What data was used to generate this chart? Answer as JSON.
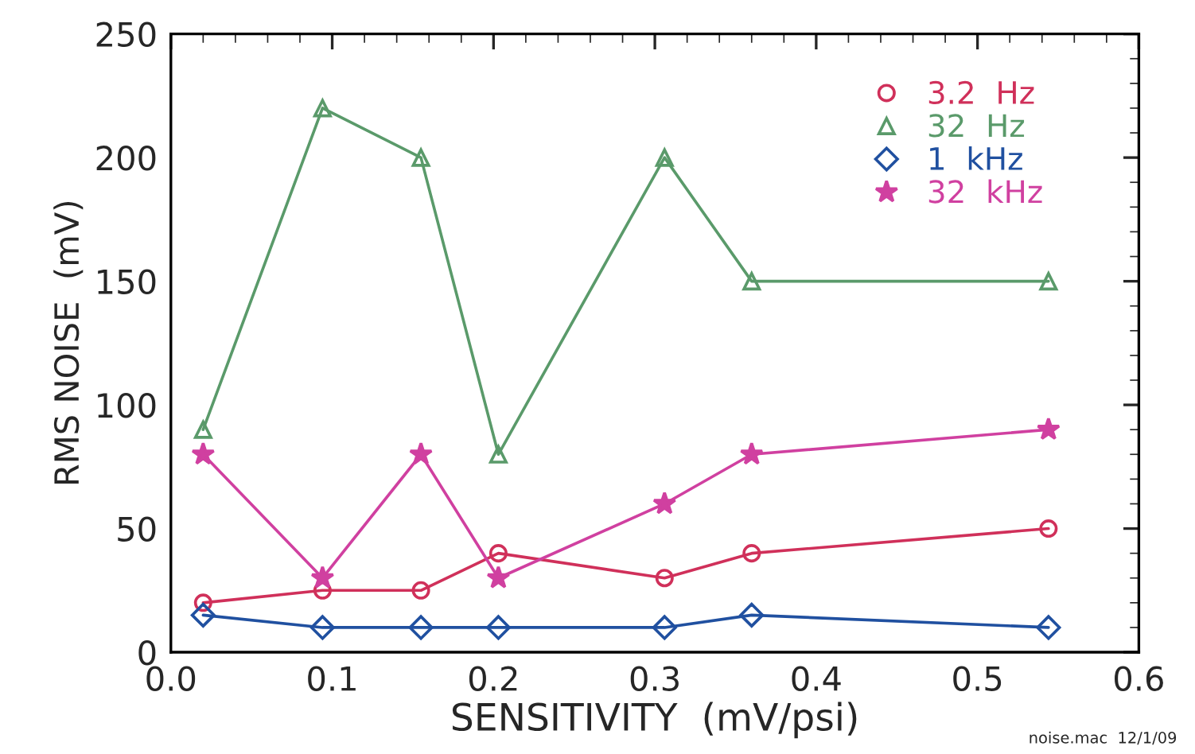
{
  "chart_data": {
    "type": "line",
    "xlabel": "SENSITIVITY  (mV/psi)",
    "ylabel": "RMS NOISE  (mV)",
    "x": [
      0.02,
      0.094,
      0.155,
      0.203,
      0.306,
      0.36,
      0.544
    ],
    "xlim": [
      0.0,
      0.6
    ],
    "xticks": [
      {
        "value": 0.0,
        "label": "0.0"
      },
      0.1,
      0.2,
      0.3,
      0.4,
      0.5,
      0.6
    ],
    "ylim": [
      0,
      250
    ],
    "yticks": [
      0,
      50,
      100,
      150,
      200,
      250
    ],
    "grid": false,
    "legend": "top right",
    "line_style": "solid",
    "series": [
      {
        "name": "3.2  Hz",
        "color": "#d0305a",
        "marker": "circle",
        "values": [
          20,
          25,
          25,
          40,
          30,
          40,
          50
        ]
      },
      {
        "name": "32  Hz",
        "color": "#5a9a6a",
        "marker": "triangle",
        "values": [
          90,
          220,
          200,
          80,
          200,
          150,
          150
        ]
      },
      {
        "name": "1  kHz",
        "color": "#2050a0",
        "marker": "diamond",
        "values": [
          15,
          10,
          10,
          10,
          10,
          15,
          10
        ]
      },
      {
        "name": "32  kHz",
        "color": "#d040a0",
        "marker": "star",
        "values": [
          80,
          30,
          80,
          30,
          60,
          80,
          90
        ]
      }
    ],
    "annotations": [
      "noise.mac  12/1/09"
    ]
  }
}
